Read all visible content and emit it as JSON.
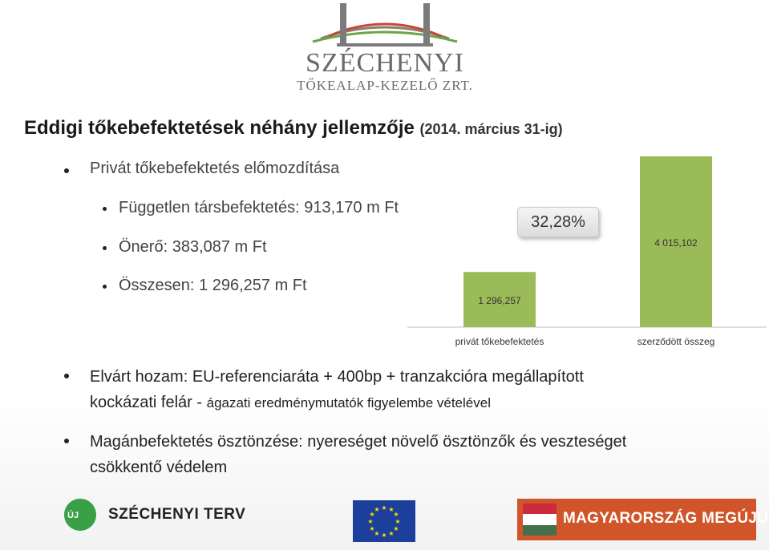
{
  "logo": {
    "name": "SZÉCHENYI",
    "subtitle": "TŐKEALAP-KEZELŐ ZRT."
  },
  "title": {
    "main": "Eddigi tőkebefektetések néhány jellemzője ",
    "date": "(2014. március 31-ig)"
  },
  "bullets": {
    "b1": "Privát tőkebefektetés előmozdítása",
    "sub1": "Független társbefektetés: 913,170 m Ft",
    "sub2": "Önerő: 383,087 m Ft",
    "sub3": "Összesen: 1 296,257 m Ft"
  },
  "chart_data": {
    "type": "bar",
    "categories": [
      "privát tőkebefektetés",
      "szerződött összeg"
    ],
    "values": [
      1296.257,
      4015.102
    ],
    "value_labels": [
      "1 296,257",
      "4 015,102"
    ],
    "callout": "32,28%",
    "bar_color": "#9bbb59",
    "ylim": [
      0,
      4015.102
    ],
    "grid": false
  },
  "paragraphs": {
    "p1_line1": "Elvárt hozam: EU-referenciaráta + 400bp + tranzakcióra megállapított",
    "p1_line2_a": "kockázati felár - ",
    "p1_line2_b": "ágazati eredménymutatók figyelembe vételével",
    "p2_line1": "Magánbefektetés ösztönzése: nyereséget növelő ösztönzők és veszteséget",
    "p2_line2": "csökkentő védelem"
  },
  "footer": {
    "uj": "ÚJ",
    "szechenyi_terv": "SZÉCHENYI TERV",
    "magyarorszag": "MAGYARORSZÁG MEGÚJUL"
  },
  "colors": {
    "bar": "#9bbb59",
    "banner": "#d1552b",
    "eu_blue": "#1b3f9a",
    "uj_green": "#3aa047"
  }
}
